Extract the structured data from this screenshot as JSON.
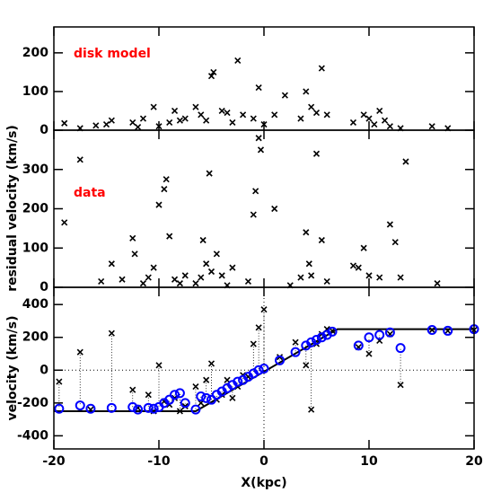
{
  "chart_data": [
    {
      "type": "scatter",
      "annotation": "disk model",
      "color": "#000000",
      "marker": "x",
      "x": [
        -19,
        -17.5,
        -16,
        -15,
        -14.5,
        -12.5,
        -12,
        -11.5,
        -10.5,
        -10,
        -9,
        -8.5,
        -8,
        -7.5,
        -6.5,
        -6,
        -5.5,
        -5,
        -4.8,
        -4,
        -3.5,
        -3,
        -2.5,
        -2,
        -1,
        -0.5,
        0,
        1,
        2,
        3.5,
        4,
        4.5,
        5,
        5.5,
        6,
        8.5,
        9.5,
        10,
        10.5,
        11,
        11.5,
        12,
        13,
        16,
        17.5
      ],
      "values": [
        18,
        5,
        12,
        15,
        25,
        20,
        8,
        30,
        60,
        10,
        20,
        50,
        25,
        30,
        60,
        40,
        25,
        140,
        150,
        50,
        45,
        20,
        180,
        40,
        30,
        110,
        15,
        40,
        90,
        30,
        100,
        60,
        45,
        160,
        40,
        20,
        40,
        30,
        15,
        50,
        25,
        10,
        5,
        10,
        5
      ],
      "ylim": [
        0,
        267
      ],
      "yticks": [
        0,
        100,
        200
      ]
    },
    {
      "type": "scatter",
      "annotation": "data",
      "ylabel": "residual velocity (km/s)",
      "color": "#000000",
      "marker": "x",
      "x": [
        -19,
        -17.5,
        -15.5,
        -14.5,
        -13.5,
        -12.5,
        -12.3,
        -11.5,
        -11,
        -10.5,
        -10,
        -9.5,
        -9.3,
        -9,
        -8.5,
        -8,
        -7.5,
        -6.5,
        -6,
        -5.8,
        -5.5,
        -5.2,
        -5,
        -4.5,
        -4,
        -3.5,
        -3,
        -1.5,
        -1,
        -0.8,
        -0.5,
        -0.3,
        1,
        2.5,
        3.5,
        4,
        4.3,
        4.5,
        5,
        5.5,
        6,
        8.5,
        9,
        9.5,
        10,
        11,
        12,
        12.5,
        13,
        13.5,
        16.5
      ],
      "values": [
        165,
        325,
        15,
        60,
        20,
        125,
        85,
        10,
        25,
        50,
        210,
        250,
        275,
        130,
        20,
        10,
        30,
        10,
        25,
        120,
        60,
        290,
        40,
        85,
        30,
        5,
        50,
        15,
        185,
        245,
        380,
        350,
        200,
        5,
        25,
        140,
        60,
        30,
        340,
        120,
        15,
        55,
        50,
        100,
        30,
        25,
        160,
        115,
        25,
        320,
        10
      ],
      "ylim": [
        0,
        400
      ],
      "yticks": [
        0,
        100,
        200,
        300
      ]
    },
    {
      "type": "scatter",
      "ylabel": "velocity (km/s)",
      "xlabel": "X(kpc)",
      "xlim": [
        -20,
        20
      ],
      "xticks": [
        -20,
        -10,
        0,
        10,
        20
      ],
      "ylim": [
        -480,
        505
      ],
      "yticks": [
        -400,
        -200,
        0,
        200,
        400
      ],
      "x": [
        -19.5,
        -17.5,
        -16.5,
        -14.5,
        -12.5,
        -12,
        -11,
        -10.5,
        -10,
        -9.5,
        -9,
        -8.5,
        -8,
        -7.5,
        -6.5,
        -6,
        -5.5,
        -5,
        -4.5,
        -4,
        -3.5,
        -3,
        -2.5,
        -2,
        -1.5,
        -1,
        -0.5,
        0,
        1.5,
        3,
        4,
        4.5,
        5,
        5.5,
        6,
        6.5,
        9,
        10,
        11,
        12,
        13,
        16,
        17.5,
        20
      ],
      "series": [
        {
          "color": "#000000",
          "marker": "x",
          "values": [
            -70,
            110,
            -240,
            225,
            -120,
            -230,
            -150,
            -250,
            30,
            -190,
            -210,
            -170,
            -250,
            -220,
            -100,
            -200,
            -60,
            40,
            -180,
            -150,
            -60,
            -170,
            -100,
            -30,
            -40,
            160,
            260,
            370,
            80,
            170,
            30,
            -240,
            160,
            220,
            250,
            240,
            140,
            100,
            180,
            220,
            -90,
            245,
            240,
            245
          ]
        },
        {
          "color": "#0000ff",
          "marker": "o",
          "values": [
            -235,
            -215,
            -235,
            -230,
            -225,
            -240,
            -230,
            -235,
            -225,
            -200,
            -180,
            -150,
            -140,
            -200,
            -240,
            -160,
            -170,
            -180,
            -150,
            -130,
            -110,
            -90,
            -70,
            -60,
            -40,
            -20,
            0,
            10,
            60,
            110,
            150,
            170,
            185,
            200,
            215,
            235,
            150,
            200,
            215,
            230,
            135,
            245,
            240,
            250
          ]
        }
      ],
      "line": {
        "color": "#000000",
        "x": [
          -20,
          -6.5,
          7,
          20
        ],
        "values": [
          -250,
          -250,
          250,
          250
        ]
      }
    }
  ]
}
